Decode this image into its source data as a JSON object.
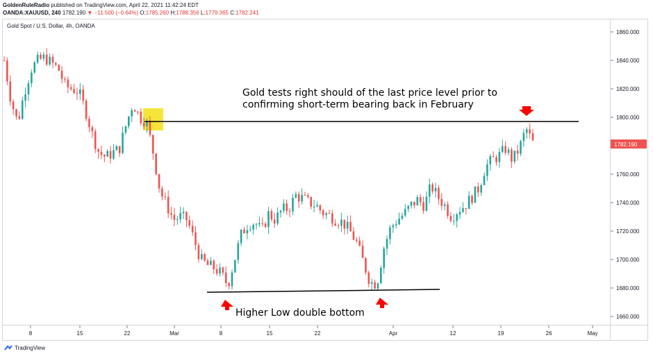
{
  "header": {
    "publisher": "GoldenRuleRadio",
    "published_text": "published on TradingView.com, April 22, 2021 11:42:24 EDT",
    "symbol": "OANDA:XAUUSD, 240",
    "last": "1782.190",
    "change": "▼ −11.500 (−0.64%)",
    "o_label": "O:",
    "o": "1785.260",
    "h_label": "H:",
    "h": "1788.356",
    "l_label": "L:",
    "l": "1779.365",
    "c_label": "C:",
    "c": "1782.241"
  },
  "chart_title": "Gold Spot / U.S. Dollar, 4h, OANDA",
  "footer": {
    "brand": "TradingView"
  },
  "chart_data": {
    "type": "line",
    "series": [
      {
        "values": [
          {
            "x": "Feb 4",
            "y": 1840
          },
          {
            "x": "Feb 5",
            "y": 1812
          },
          {
            "x": "Feb 6",
            "y": 1796
          },
          {
            "x": "Feb 7",
            "y": 1818
          },
          {
            "x": "Feb 8",
            "y": 1834
          },
          {
            "x": "Feb 9",
            "y": 1840
          },
          {
            "x": "Feb 10",
            "y": 1842
          },
          {
            "x": "Feb 11",
            "y": 1838
          },
          {
            "x": "Feb 12",
            "y": 1834
          },
          {
            "x": "Feb 13",
            "y": 1822
          },
          {
            "x": "Feb 14",
            "y": 1820
          },
          {
            "x": "Feb 15",
            "y": 1818
          },
          {
            "x": "Feb 16",
            "y": 1805
          },
          {
            "x": "Feb 17",
            "y": 1788
          },
          {
            "x": "Feb 18",
            "y": 1775
          },
          {
            "x": "Feb 19",
            "y": 1772
          },
          {
            "x": "Feb 20",
            "y": 1775
          },
          {
            "x": "Feb 21",
            "y": 1778
          },
          {
            "x": "Feb 22",
            "y": 1795
          },
          {
            "x": "Feb 23",
            "y": 1810
          },
          {
            "x": "Feb 24",
            "y": 1800
          },
          {
            "x": "Feb 25",
            "y": 1797
          },
          {
            "x": "Feb 26",
            "y": 1775
          },
          {
            "x": "Feb 27",
            "y": 1748
          },
          {
            "x": "Feb 28",
            "y": 1738
          },
          {
            "x": "Mar 1",
            "y": 1728
          },
          {
            "x": "Mar 2",
            "y": 1730
          },
          {
            "x": "Mar 3",
            "y": 1728
          },
          {
            "x": "Mar 4",
            "y": 1714
          },
          {
            "x": "Mar 5",
            "y": 1700
          },
          {
            "x": "Mar 6",
            "y": 1696
          },
          {
            "x": "Mar 7",
            "y": 1694
          },
          {
            "x": "Mar 8",
            "y": 1690
          },
          {
            "x": "Mar 9",
            "y": 1682
          },
          {
            "x": "Mar 10",
            "y": 1700
          },
          {
            "x": "Mar 11",
            "y": 1718
          },
          {
            "x": "Mar 12",
            "y": 1725
          },
          {
            "x": "Mar 13",
            "y": 1726
          },
          {
            "x": "Mar 14",
            "y": 1720
          },
          {
            "x": "Mar 15",
            "y": 1732
          },
          {
            "x": "Mar 16",
            "y": 1728
          },
          {
            "x": "Mar 17",
            "y": 1735
          },
          {
            "x": "Mar 18",
            "y": 1736
          },
          {
            "x": "Mar 19",
            "y": 1745
          },
          {
            "x": "Mar 20",
            "y": 1743
          },
          {
            "x": "Mar 21",
            "y": 1740
          },
          {
            "x": "Mar 22",
            "y": 1738
          },
          {
            "x": "Mar 23",
            "y": 1733
          },
          {
            "x": "Mar 24",
            "y": 1731
          },
          {
            "x": "Mar 25",
            "y": 1728
          },
          {
            "x": "Mar 26",
            "y": 1726
          },
          {
            "x": "Mar 27",
            "y": 1720
          },
          {
            "x": "Mar 28",
            "y": 1712
          },
          {
            "x": "Mar 29",
            "y": 1698
          },
          {
            "x": "Mar 30",
            "y": 1684
          },
          {
            "x": "Mar 31",
            "y": 1683
          },
          {
            "x": "Apr 1",
            "y": 1708
          },
          {
            "x": "Apr 2",
            "y": 1722
          },
          {
            "x": "Apr 3",
            "y": 1728
          },
          {
            "x": "Apr 4",
            "y": 1732
          },
          {
            "x": "Apr 5",
            "y": 1738
          },
          {
            "x": "Apr 6",
            "y": 1742
          },
          {
            "x": "Apr 7",
            "y": 1738
          },
          {
            "x": "Apr 8",
            "y": 1752
          },
          {
            "x": "Apr 9",
            "y": 1744
          },
          {
            "x": "Apr 10",
            "y": 1738
          },
          {
            "x": "Apr 11",
            "y": 1730
          },
          {
            "x": "Apr 12",
            "y": 1735
          },
          {
            "x": "Apr 13",
            "y": 1738
          },
          {
            "x": "Apr 14",
            "y": 1744
          },
          {
            "x": "Apr 15",
            "y": 1750
          },
          {
            "x": "Apr 16",
            "y": 1765
          },
          {
            "x": "Apr 17",
            "y": 1770
          },
          {
            "x": "Apr 18",
            "y": 1773
          },
          {
            "x": "Apr 19",
            "y": 1778
          },
          {
            "x": "Apr 20",
            "y": 1770
          },
          {
            "x": "Apr 21",
            "y": 1778
          },
          {
            "x": "Apr 22",
            "y": 1792
          },
          {
            "x": "Apr 23",
            "y": 1782
          }
        ]
      }
    ],
    "x_ticks": [
      "8",
      "15",
      "22",
      "Mar",
      "8",
      "15",
      "22",
      "Apr",
      "12",
      "19",
      "26",
      "May"
    ],
    "y_ticks": [
      1660,
      1680,
      1700,
      1720,
      1740,
      1760,
      1780,
      1800,
      1820,
      1840,
      1860
    ],
    "ylim": [
      1650,
      1870
    ],
    "last_price_label": "1782.190",
    "resistance_level": 1797,
    "support_line": {
      "from": 1677,
      "to": 1679
    },
    "annotations": [
      {
        "id": "top",
        "lines": [
          "Gold tests right should of the last price level prior to",
          "confirming short-term bearing back in February"
        ]
      },
      {
        "id": "bottom",
        "lines": [
          "Higher Low double bottom"
        ]
      }
    ],
    "colors": {
      "up": "#26a69a",
      "down": "#ef5350",
      "highlight": "#f5e53a",
      "arrow": "#ff0000",
      "line": "#000000",
      "price_tag": "#ef5350"
    }
  }
}
